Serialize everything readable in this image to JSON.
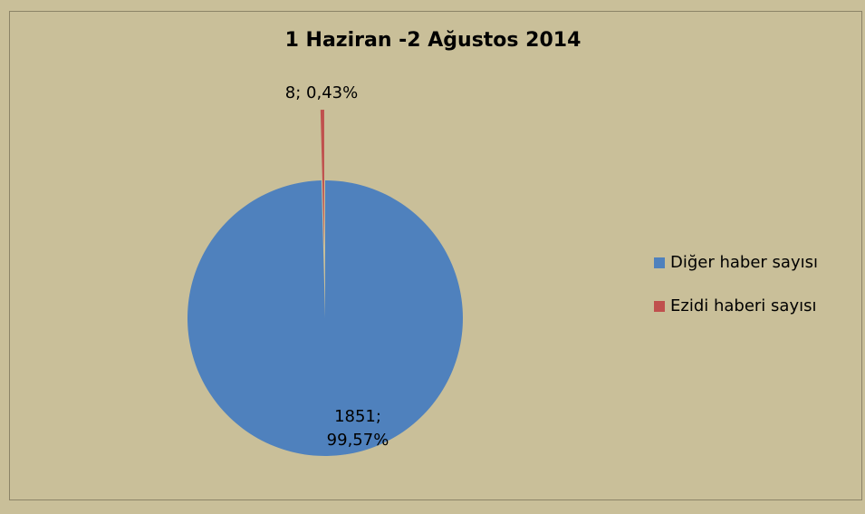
{
  "chart_data": {
    "type": "pie",
    "title": "1 Haziran -2 Ağustos 2014",
    "categories": [
      "Diğer haber sayısı",
      "Ezidi haberi sayısı"
    ],
    "values": [
      1851,
      8
    ],
    "value_labels": [
      "1851; 99,57%",
      "8; 0,43%"
    ],
    "colors": [
      "#4f81bd",
      "#c0504d"
    ],
    "legend": "right"
  }
}
